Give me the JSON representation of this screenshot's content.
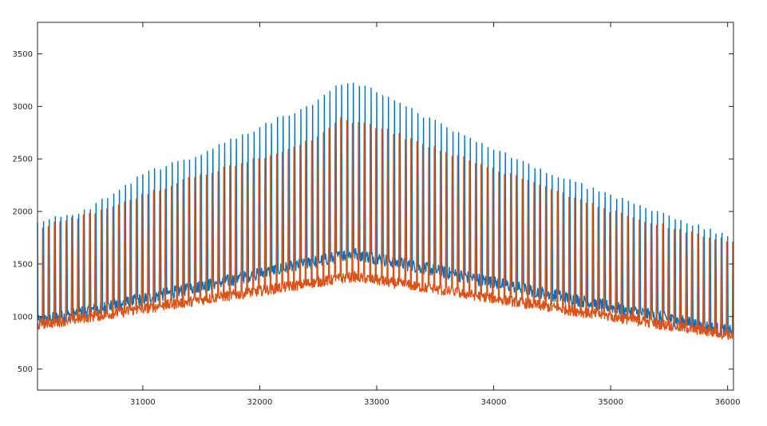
{
  "chart_data": {
    "type": "line",
    "title": "",
    "xlabel": "",
    "ylabel": "",
    "xlim": [
      30100,
      36050
    ],
    "ylim": [
      300,
      3800
    ],
    "xticks": [
      31000,
      32000,
      33000,
      34000,
      35000,
      36000
    ],
    "yticks": [
      500,
      1000,
      1500,
      2000,
      2500,
      3000,
      3500
    ],
    "grid": false,
    "legend": "none",
    "spike_period": 50,
    "series": [
      {
        "color": "#0072BD",
        "baseline": [
          [
            30100,
            950
          ],
          [
            32800,
            1600
          ],
          [
            36050,
            850
          ]
        ],
        "baseline_noise": 60,
        "spike_envelope": [
          [
            30100,
            1900
          ],
          [
            30500,
            2000
          ],
          [
            31000,
            2350
          ],
          [
            31500,
            2550
          ],
          [
            32000,
            2800
          ],
          [
            32500,
            3050
          ],
          [
            32700,
            3220
          ],
          [
            32800,
            3230
          ],
          [
            33000,
            3150
          ],
          [
            33500,
            2850
          ],
          [
            34000,
            2600
          ],
          [
            34500,
            2350
          ],
          [
            35000,
            2150
          ],
          [
            35500,
            1950
          ],
          [
            36050,
            1750
          ]
        ]
      },
      {
        "color": "#D95319",
        "baseline": [
          [
            30100,
            920
          ],
          [
            32800,
            1380
          ],
          [
            36050,
            820
          ]
        ],
        "baseline_noise": 50,
        "spike_envelope": [
          [
            30100,
            1850
          ],
          [
            30500,
            1950
          ],
          [
            31000,
            2150
          ],
          [
            31500,
            2350
          ],
          [
            32000,
            2500
          ],
          [
            32500,
            2700
          ],
          [
            32700,
            2900
          ],
          [
            32800,
            2850
          ],
          [
            33000,
            2800
          ],
          [
            33500,
            2600
          ],
          [
            34000,
            2400
          ],
          [
            34500,
            2200
          ],
          [
            35000,
            2000
          ],
          [
            35500,
            1850
          ],
          [
            36050,
            1700
          ]
        ]
      }
    ]
  }
}
